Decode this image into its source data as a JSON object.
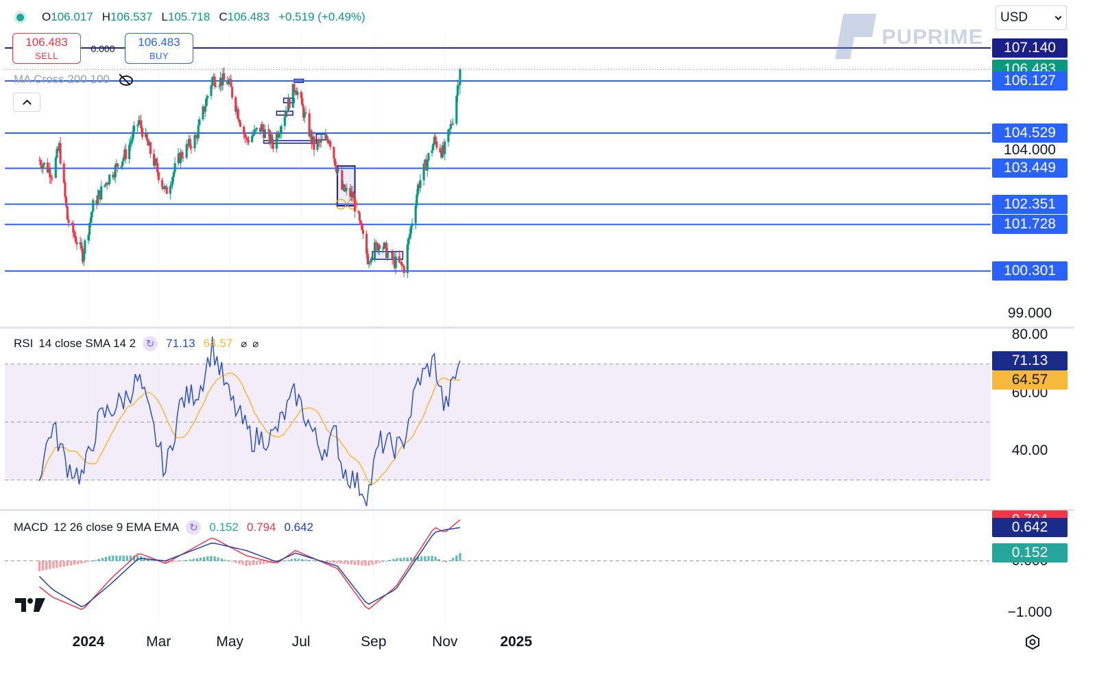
{
  "ohlc": {
    "open_label": "O",
    "open": "106.017",
    "high_label": "H",
    "high": "106.537",
    "low_label": "L",
    "low": "105.718",
    "close_label": "C",
    "close": "106.483",
    "change": "+0.519 (+0.49%)"
  },
  "trade": {
    "sell_price": "106.483",
    "sell_label": "SELL",
    "spread": "0.000",
    "buy_price": "106.483",
    "buy_label": "BUY"
  },
  "indicators": {
    "ma": {
      "label": "MA Cross 200 100"
    },
    "rsi": {
      "name": "RSI",
      "params": "14 close SMA 14 2",
      "value1": "71.13",
      "value2": "64.57",
      "value1_color": "#2a4fc7",
      "value2_color": "#f6b93b"
    },
    "macd": {
      "name": "MACD",
      "params": "12 26 close 9 EMA EMA",
      "hist": "0.152",
      "macd": "0.794",
      "signal": "0.642",
      "hist_color": "#26a69a",
      "macd_color": "#f23645",
      "signal_color": "#1e40a8"
    }
  },
  "currency": {
    "selected": "USD"
  },
  "watermark": {
    "text": "PUPRIME"
  },
  "price_scale": {
    "tags": [
      {
        "value": "107.140",
        "color": "#1b1f8a"
      },
      {
        "value": "106.483",
        "color": "#089981"
      },
      {
        "value": "106.127",
        "color": "#2962ff"
      },
      {
        "value": "104.529",
        "color": "#2962ff"
      },
      {
        "value": "103.449",
        "color": "#2962ff"
      },
      {
        "value": "102.351",
        "color": "#2962ff"
      },
      {
        "value": "101.728",
        "color": "#2962ff"
      },
      {
        "value": "100.301",
        "color": "#2962ff"
      }
    ],
    "ticks": [
      "104.000",
      "99.000"
    ]
  },
  "rsi_scale": {
    "ticks": [
      "80.00",
      "60.00",
      "40.00"
    ],
    "tags": [
      {
        "value": "71.13",
        "color": "#1b2b8a"
      },
      {
        "value": "64.57",
        "color": "#f6b93b",
        "text_color": "#131722"
      }
    ]
  },
  "macd_scale": {
    "ticks": [
      "0.000",
      "−1.000"
    ],
    "tags": [
      {
        "value": "0.794",
        "color": "#f23645"
      },
      {
        "value": "0.642",
        "color": "#1b2b8a"
      },
      {
        "value": "0.152",
        "color": "#26a69a"
      }
    ]
  },
  "time_axis": [
    "2024",
    "Mar",
    "May",
    "Jul",
    "Sep",
    "Nov",
    "2025"
  ],
  "colors": {
    "up": "#089981",
    "down": "#f23645",
    "level_line": "#2962ff",
    "level_top": "#1b1f8a",
    "rsi_line": "#2a4fc7",
    "rsi_sma": "#f6b93b",
    "rsi_band": "#ede7f6"
  },
  "chart_data": {
    "type": "candlestick",
    "instrument_currency": "USD",
    "price_range": [
      98.6,
      107.6
    ],
    "levels": [
      107.14,
      106.127,
      104.529,
      103.449,
      102.351,
      101.728,
      100.301
    ],
    "last_price": 106.483,
    "anchors": [
      {
        "t": "2023-11-20",
        "p": 103.7
      },
      {
        "t": "2023-12-01",
        "p": 103.3
      },
      {
        "t": "2023-12-07",
        "p": 104.1
      },
      {
        "t": "2023-12-14",
        "p": 101.9
      },
      {
        "t": "2023-12-27",
        "p": 100.8
      },
      {
        "t": "2024-01-05",
        "p": 102.3
      },
      {
        "t": "2024-01-19",
        "p": 103.2
      },
      {
        "t": "2024-02-02",
        "p": 103.9
      },
      {
        "t": "2024-02-13",
        "p": 104.9
      },
      {
        "t": "2024-03-07",
        "p": 102.7
      },
      {
        "t": "2024-03-19",
        "p": 103.8
      },
      {
        "t": "2024-04-02",
        "p": 104.4
      },
      {
        "t": "2024-04-16",
        "p": 106.2
      },
      {
        "t": "2024-04-30",
        "p": 106.1
      },
      {
        "t": "2024-05-15",
        "p": 104.3
      },
      {
        "t": "2024-05-28",
        "p": 104.7
      },
      {
        "t": "2024-06-07",
        "p": 104.2
      },
      {
        "t": "2024-06-26",
        "p": 106.0
      },
      {
        "t": "2024-07-12",
        "p": 104.1
      },
      {
        "t": "2024-07-25",
        "p": 104.4
      },
      {
        "t": "2024-08-05",
        "p": 102.8
      },
      {
        "t": "2024-08-14",
        "p": 102.6
      },
      {
        "t": "2024-08-27",
        "p": 100.7
      },
      {
        "t": "2024-09-06",
        "p": 101.2
      },
      {
        "t": "2024-09-18",
        "p": 100.6
      },
      {
        "t": "2024-09-27",
        "p": 100.4
      },
      {
        "t": "2024-10-09",
        "p": 102.9
      },
      {
        "t": "2024-10-23",
        "p": 104.3
      },
      {
        "t": "2024-10-31",
        "p": 103.9
      },
      {
        "t": "2024-11-08",
        "p": 105.0
      },
      {
        "t": "2024-11-14",
        "p": 106.48
      }
    ],
    "rsi": {
      "params": "14 close SMA 14 2",
      "value": 71.13,
      "sma_value": 64.57,
      "range": [
        20,
        82
      ],
      "band": [
        30,
        70
      ],
      "anchors": [
        {
          "t": "2023-11-20",
          "v": 32
        },
        {
          "t": "2023-12-01",
          "v": 49
        },
        {
          "t": "2023-12-14",
          "v": 35
        },
        {
          "t": "2023-12-27",
          "v": 31
        },
        {
          "t": "2024-01-10",
          "v": 51
        },
        {
          "t": "2024-02-01",
          "v": 58
        },
        {
          "t": "2024-02-13",
          "v": 65
        },
        {
          "t": "2024-03-07",
          "v": 33
        },
        {
          "t": "2024-03-20",
          "v": 57
        },
        {
          "t": "2024-04-05",
          "v": 61
        },
        {
          "t": "2024-04-16",
          "v": 76
        },
        {
          "t": "2024-05-01",
          "v": 58
        },
        {
          "t": "2024-05-20",
          "v": 44
        },
        {
          "t": "2024-06-07",
          "v": 45
        },
        {
          "t": "2024-06-26",
          "v": 60
        },
        {
          "t": "2024-07-18",
          "v": 40
        },
        {
          "t": "2024-07-31",
          "v": 46
        },
        {
          "t": "2024-08-05",
          "v": 34
        },
        {
          "t": "2024-08-27",
          "v": 25
        },
        {
          "t": "2024-09-06",
          "v": 43
        },
        {
          "t": "2024-09-25",
          "v": 41
        },
        {
          "t": "2024-10-09",
          "v": 64
        },
        {
          "t": "2024-10-23",
          "v": 71
        },
        {
          "t": "2024-11-01",
          "v": 54
        },
        {
          "t": "2024-11-14",
          "v": 71.13
        }
      ]
    },
    "macd": {
      "params": "12 26 close 9 EMA EMA",
      "macd": 0.794,
      "signal": 0.642,
      "histogram": 0.152,
      "range": [
        -1.2,
        0.95
      ],
      "anchors": [
        {
          "t": "2023-11-20",
          "m": -0.5,
          "s": -0.3
        },
        {
          "t": "2023-12-01",
          "m": -0.7,
          "s": -0.55
        },
        {
          "t": "2023-12-27",
          "m": -0.95,
          "s": -0.9
        },
        {
          "t": "2024-01-20",
          "m": -0.35,
          "s": -0.45
        },
        {
          "t": "2024-02-13",
          "m": 0.15,
          "s": 0.05
        },
        {
          "t": "2024-03-07",
          "m": -0.05,
          "s": 0.0
        },
        {
          "t": "2024-04-16",
          "m": 0.45,
          "s": 0.35
        },
        {
          "t": "2024-05-15",
          "m": 0.1,
          "s": 0.2
        },
        {
          "t": "2024-06-10",
          "m": -0.05,
          "s": -0.02
        },
        {
          "t": "2024-06-26",
          "m": 0.2,
          "s": 0.15
        },
        {
          "t": "2024-08-01",
          "m": -0.15,
          "s": -0.1
        },
        {
          "t": "2024-08-27",
          "m": -0.95,
          "s": -0.85
        },
        {
          "t": "2024-09-20",
          "m": -0.5,
          "s": -0.55
        },
        {
          "t": "2024-10-23",
          "m": 0.65,
          "s": 0.55
        },
        {
          "t": "2024-11-01",
          "m": 0.55,
          "s": 0.6
        },
        {
          "t": "2024-11-14",
          "m": 0.794,
          "s": 0.642
        }
      ]
    }
  }
}
